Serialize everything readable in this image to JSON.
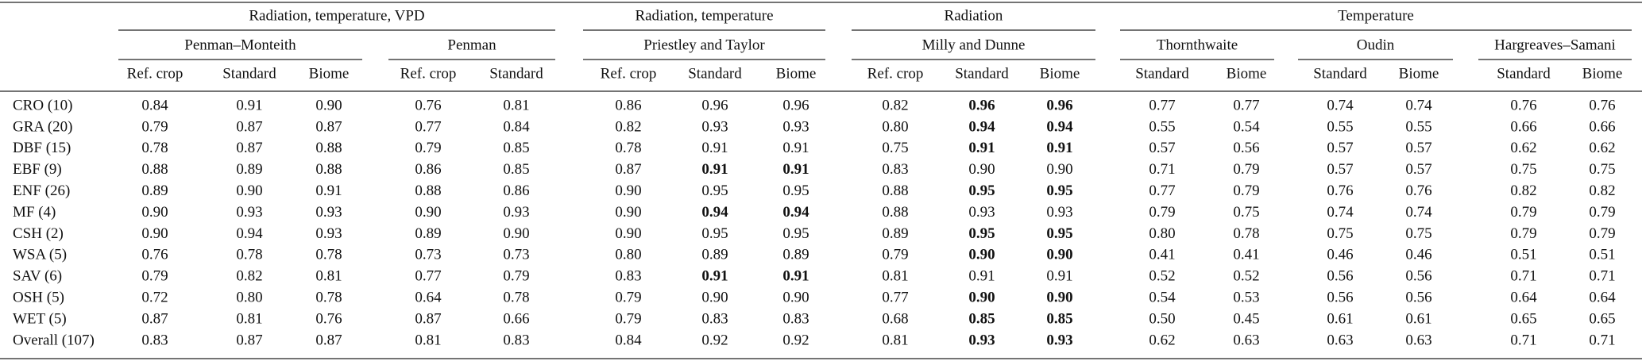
{
  "table": {
    "groups": [
      {
        "label": "Radiation, temperature, VPD",
        "subgroups": [
          {
            "label": "Penman–Monteith",
            "columns": [
              "Ref. crop",
              "Standard",
              "Biome"
            ]
          },
          {
            "label": "Penman",
            "columns": [
              "Ref. crop",
              "Standard"
            ]
          }
        ]
      },
      {
        "label": "Radiation, temperature",
        "subgroups": [
          {
            "label": "Priestley and Taylor",
            "columns": [
              "Ref. crop",
              "Standard",
              "Biome"
            ]
          }
        ]
      },
      {
        "label": "Radiation",
        "subgroups": [
          {
            "label": "Milly and Dunne",
            "columns": [
              "Ref. crop",
              "Standard",
              "Biome"
            ]
          }
        ]
      },
      {
        "label": "Temperature",
        "subgroups": [
          {
            "label": "Thornthwaite",
            "columns": [
              "Standard",
              "Biome"
            ]
          },
          {
            "label": "Oudin",
            "columns": [
              "Standard",
              "Biome"
            ]
          },
          {
            "label": "Hargreaves–Samani",
            "columns": [
              "Standard",
              "Biome"
            ]
          }
        ]
      }
    ],
    "rows": [
      {
        "label": "CRO (10)",
        "cells": [
          "0.84",
          "0.91",
          "0.90",
          "0.76",
          "0.81",
          "0.86",
          "0.96",
          "0.96",
          "0.82",
          "0.96",
          "0.96",
          "0.77",
          "0.77",
          "0.74",
          "0.74",
          "0.76",
          "0.76"
        ]
      },
      {
        "label": "GRA (20)",
        "cells": [
          "0.79",
          "0.87",
          "0.87",
          "0.77",
          "0.84",
          "0.82",
          "0.93",
          "0.93",
          "0.80",
          "0.94",
          "0.94",
          "0.55",
          "0.54",
          "0.55",
          "0.55",
          "0.66",
          "0.66"
        ]
      },
      {
        "label": "DBF (15)",
        "cells": [
          "0.78",
          "0.87",
          "0.88",
          "0.79",
          "0.85",
          "0.78",
          "0.91",
          "0.91",
          "0.75",
          "0.91",
          "0.91",
          "0.57",
          "0.56",
          "0.57",
          "0.57",
          "0.62",
          "0.62"
        ]
      },
      {
        "label": "EBF (9)",
        "cells": [
          "0.88",
          "0.89",
          "0.88",
          "0.86",
          "0.85",
          "0.87",
          "0.91",
          "0.91",
          "0.83",
          "0.90",
          "0.90",
          "0.71",
          "0.79",
          "0.57",
          "0.57",
          "0.75",
          "0.75"
        ]
      },
      {
        "label": "ENF (26)",
        "cells": [
          "0.89",
          "0.90",
          "0.91",
          "0.88",
          "0.86",
          "0.90",
          "0.95",
          "0.95",
          "0.88",
          "0.95",
          "0.95",
          "0.77",
          "0.79",
          "0.76",
          "0.76",
          "0.82",
          "0.82"
        ]
      },
      {
        "label": "MF (4)",
        "cells": [
          "0.90",
          "0.93",
          "0.93",
          "0.90",
          "0.93",
          "0.90",
          "0.94",
          "0.94",
          "0.88",
          "0.93",
          "0.93",
          "0.79",
          "0.75",
          "0.74",
          "0.74",
          "0.79",
          "0.79"
        ]
      },
      {
        "label": "CSH (2)",
        "cells": [
          "0.90",
          "0.94",
          "0.93",
          "0.89",
          "0.90",
          "0.90",
          "0.95",
          "0.95",
          "0.89",
          "0.95",
          "0.95",
          "0.80",
          "0.78",
          "0.75",
          "0.75",
          "0.79",
          "0.79"
        ]
      },
      {
        "label": "WSA (5)",
        "cells": [
          "0.76",
          "0.78",
          "0.78",
          "0.73",
          "0.73",
          "0.80",
          "0.89",
          "0.89",
          "0.79",
          "0.90",
          "0.90",
          "0.41",
          "0.41",
          "0.46",
          "0.46",
          "0.51",
          "0.51"
        ]
      },
      {
        "label": "SAV (6)",
        "cells": [
          "0.79",
          "0.82",
          "0.81",
          "0.77",
          "0.79",
          "0.83",
          "0.91",
          "0.91",
          "0.81",
          "0.91",
          "0.91",
          "0.52",
          "0.52",
          "0.56",
          "0.56",
          "0.71",
          "0.71"
        ]
      },
      {
        "label": "OSH (5)",
        "cells": [
          "0.72",
          "0.80",
          "0.78",
          "0.64",
          "0.78",
          "0.79",
          "0.90",
          "0.90",
          "0.77",
          "0.90",
          "0.90",
          "0.54",
          "0.53",
          "0.56",
          "0.56",
          "0.64",
          "0.64"
        ]
      },
      {
        "label": "WET (5)",
        "cells": [
          "0.87",
          "0.81",
          "0.76",
          "0.87",
          "0.66",
          "0.79",
          "0.83",
          "0.83",
          "0.68",
          "0.85",
          "0.85",
          "0.50",
          "0.45",
          "0.61",
          "0.61",
          "0.65",
          "0.65"
        ]
      },
      {
        "label": "Overall (107)",
        "cells": [
          "0.83",
          "0.87",
          "0.87",
          "0.81",
          "0.83",
          "0.84",
          "0.92",
          "0.92",
          "0.81",
          "0.93",
          "0.93",
          "0.62",
          "0.63",
          "0.63",
          "0.63",
          "0.71",
          "0.71"
        ]
      }
    ],
    "bold_cells": [
      [
        0,
        9
      ],
      [
        0,
        10
      ],
      [
        1,
        9
      ],
      [
        1,
        10
      ],
      [
        2,
        9
      ],
      [
        2,
        10
      ],
      [
        3,
        6
      ],
      [
        3,
        7
      ],
      [
        4,
        9
      ],
      [
        4,
        10
      ],
      [
        5,
        6
      ],
      [
        5,
        7
      ],
      [
        6,
        9
      ],
      [
        6,
        10
      ],
      [
        7,
        9
      ],
      [
        7,
        10
      ],
      [
        8,
        6
      ],
      [
        8,
        7
      ],
      [
        9,
        9
      ],
      [
        9,
        10
      ],
      [
        10,
        9
      ],
      [
        10,
        10
      ],
      [
        11,
        9
      ],
      [
        11,
        10
      ]
    ]
  }
}
